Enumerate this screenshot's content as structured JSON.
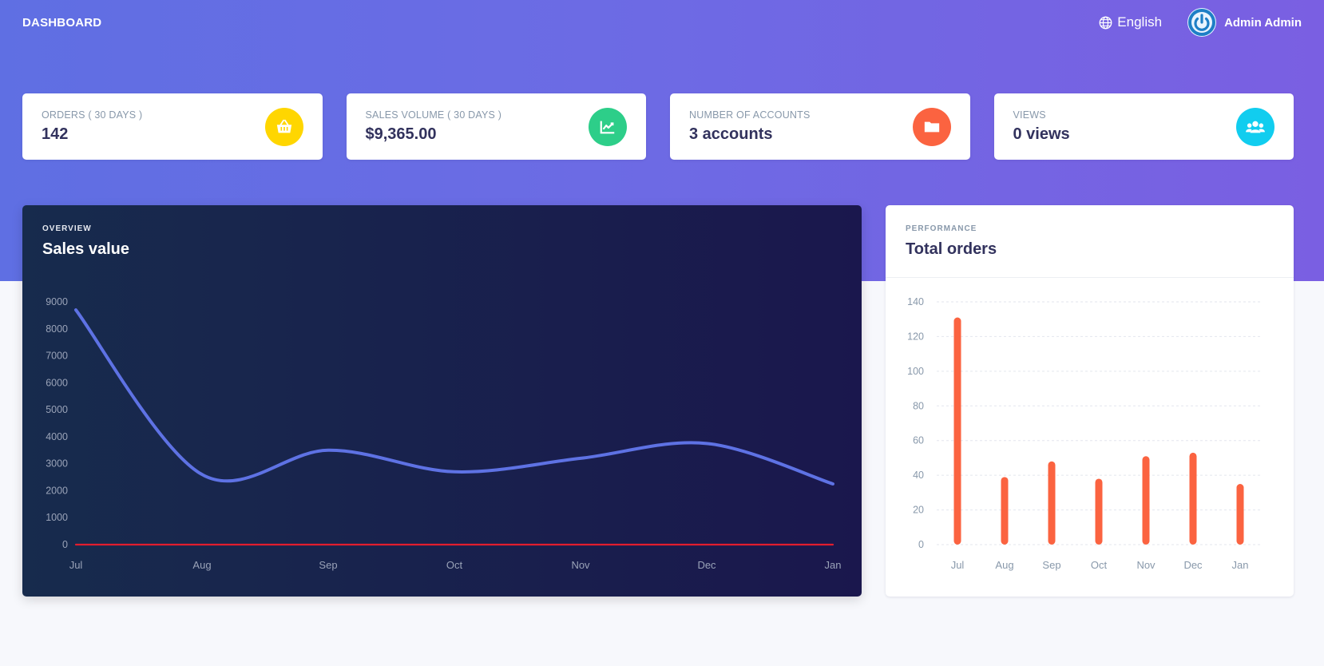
{
  "header": {
    "brand": "DASHBOARD",
    "language": "English",
    "user_name": "Admin Admin"
  },
  "stats": [
    {
      "label": "ORDERS ( 30 DAYS )",
      "value": "142",
      "icon": "basket-icon",
      "color": "#ffd600"
    },
    {
      "label": "SALES VOLUME ( 30 DAYS )",
      "value": "$9,365.00",
      "icon": "chart-line-icon",
      "color": "#2dce89"
    },
    {
      "label": "NUMBER OF ACCOUNTS",
      "value": "3 accounts",
      "icon": "folder-icon",
      "color": "#fb6340"
    },
    {
      "label": "VIEWS",
      "value": "0 views",
      "icon": "users-icon",
      "color": "#11cdef"
    }
  ],
  "overview_card": {
    "eyebrow": "OVERVIEW",
    "title": "Sales value"
  },
  "performance_card": {
    "eyebrow": "PERFORMANCE",
    "title": "Total orders"
  },
  "chart_data": [
    {
      "type": "line",
      "categories": [
        "Jul",
        "Aug",
        "Sep",
        "Oct",
        "Nov",
        "Dec",
        "Jan"
      ],
      "series": [
        {
          "values": [
            8700,
            2600,
            3500,
            2700,
            3200,
            3750,
            2250
          ],
          "color": "#5e72e4"
        },
        {
          "values": [
            0,
            0,
            0,
            0,
            0,
            0,
            0
          ],
          "color": "#e11d2e"
        }
      ],
      "yticks": [
        0,
        1000,
        2000,
        3000,
        4000,
        5000,
        6000,
        7000,
        8000,
        9000
      ],
      "ylim": [
        0,
        9000
      ],
      "grid": false
    },
    {
      "type": "bar",
      "categories": [
        "Jul",
        "Aug",
        "Sep",
        "Oct",
        "Nov",
        "Dec",
        "Jan"
      ],
      "values": [
        131,
        39,
        48,
        38,
        51,
        53,
        35
      ],
      "color": "#fb6340",
      "yticks": [
        0,
        20,
        40,
        60,
        80,
        100,
        120,
        140
      ],
      "ylim": [
        0,
        140
      ],
      "grid": true
    }
  ]
}
